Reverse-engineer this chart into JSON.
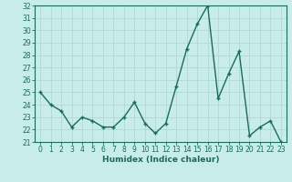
{
  "x": [
    0,
    1,
    2,
    3,
    4,
    5,
    6,
    7,
    8,
    9,
    10,
    11,
    12,
    13,
    14,
    15,
    16,
    17,
    18,
    19,
    20,
    21,
    22,
    23
  ],
  "y": [
    25.0,
    24.0,
    23.5,
    22.2,
    23.0,
    22.7,
    22.2,
    22.2,
    23.0,
    24.2,
    22.5,
    21.7,
    22.5,
    25.5,
    28.5,
    30.5,
    32.0,
    24.5,
    26.5,
    28.3,
    21.5,
    22.2,
    22.7,
    21.0
  ],
  "line_color": "#1a6b5a",
  "marker": "+",
  "marker_size": 3.5,
  "bg_color": "#c8ecea",
  "grid_color": "#b0d8d4",
  "xlabel": "Humidex (Indice chaleur)",
  "ylim": [
    21,
    32
  ],
  "xlim": [
    -0.5,
    23.5
  ],
  "yticks": [
    21,
    22,
    23,
    24,
    25,
    26,
    27,
    28,
    29,
    30,
    31,
    32
  ],
  "xticks": [
    0,
    1,
    2,
    3,
    4,
    5,
    6,
    7,
    8,
    9,
    10,
    11,
    12,
    13,
    14,
    15,
    16,
    17,
    18,
    19,
    20,
    21,
    22,
    23
  ],
  "tick_color": "#1a6b5a",
  "label_fontsize": 6.5,
  "tick_fontsize": 5.5,
  "spine_color": "#1a6b5a",
  "line_width": 1.0,
  "marker_edge_width": 1.0
}
